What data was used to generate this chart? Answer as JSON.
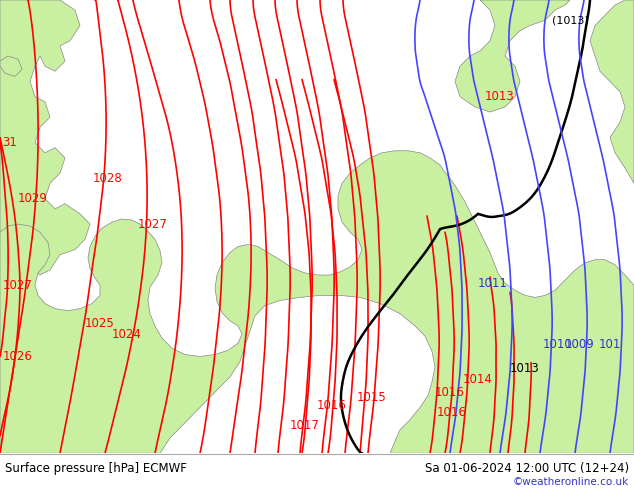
{
  "title_left": "Surface pressure [hPa] ECMWF",
  "title_right": "Sa 01-06-2024 12:00 UTC (12+24)",
  "credit": "©weatheronline.co.uk",
  "bg_color": "#c8c8c8",
  "land_color_green": "#c8f0a0",
  "isobar_color_red": "#ff0000",
  "isobar_color_black": "#000000",
  "isobar_color_blue": "#4444ff",
  "text_color_black": "#000000",
  "text_color_red": "#ff0000",
  "text_color_blue": "#3333cc",
  "text_credit_color": "#3333cc",
  "bottom_bar_color": "#e0e0e0",
  "fig_width": 6.34,
  "fig_height": 4.9,
  "dpi": 100
}
